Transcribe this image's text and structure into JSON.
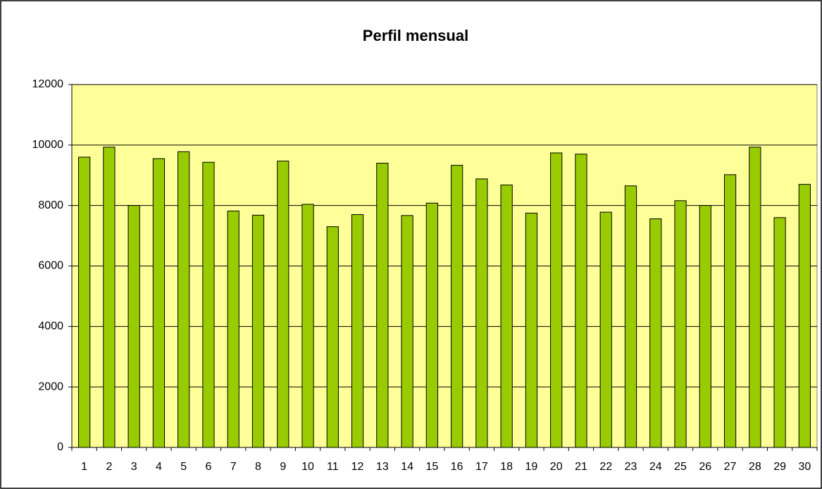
{
  "chart_data": {
    "type": "bar",
    "title": "Perfil mensual",
    "categories": [
      "1",
      "2",
      "3",
      "4",
      "5",
      "6",
      "7",
      "8",
      "9",
      "10",
      "11",
      "12",
      "13",
      "14",
      "15",
      "16",
      "17",
      "18",
      "19",
      "20",
      "21",
      "22",
      "23",
      "24",
      "25",
      "26",
      "27",
      "28",
      "29",
      "30"
    ],
    "values": [
      9600,
      9930,
      8000,
      9550,
      9780,
      9430,
      7820,
      7680,
      9470,
      8040,
      7300,
      7700,
      9400,
      7670,
      8080,
      9330,
      8880,
      8680,
      7750,
      9740,
      9700,
      7780,
      8650,
      7560,
      8160,
      8000,
      9020,
      9930,
      7600,
      8700
    ],
    "color": "#99cc00",
    "plot_background": "#ffff99",
    "ylim": [
      0,
      12000
    ],
    "yticks": [
      0,
      2000,
      4000,
      6000,
      8000,
      10000,
      12000
    ],
    "grid": true
  }
}
